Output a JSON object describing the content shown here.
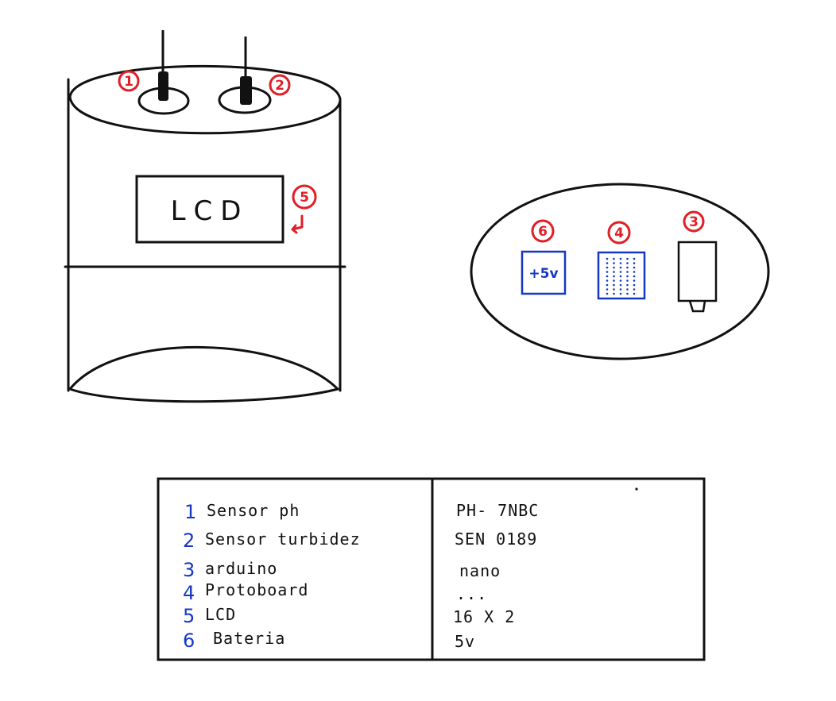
{
  "colors": {
    "ink": "#111111",
    "marker_red": "#e01f26",
    "marker_blue": "#1537c4"
  },
  "device": {
    "lcd_label": "LCD",
    "markers": [
      "1",
      "2",
      "5"
    ]
  },
  "inside_view": {
    "markers": [
      "6",
      "4",
      "3"
    ],
    "battery_label": "+5v"
  },
  "legend": {
    "rows": [
      {
        "num": "1",
        "component": "Sensor ph",
        "model": "PH- 7NBC"
      },
      {
        "num": "2",
        "component": "Sensor turbidez",
        "model": "SEN 0189"
      },
      {
        "num": "3",
        "component": "arduino",
        "model": "nano"
      },
      {
        "num": "4",
        "component": "Protoboard",
        "model": "..."
      },
      {
        "num": "5",
        "component": "LCD",
        "model": "16 X 2"
      },
      {
        "num": "6",
        "component": "Bateria",
        "model": "5v"
      }
    ]
  }
}
